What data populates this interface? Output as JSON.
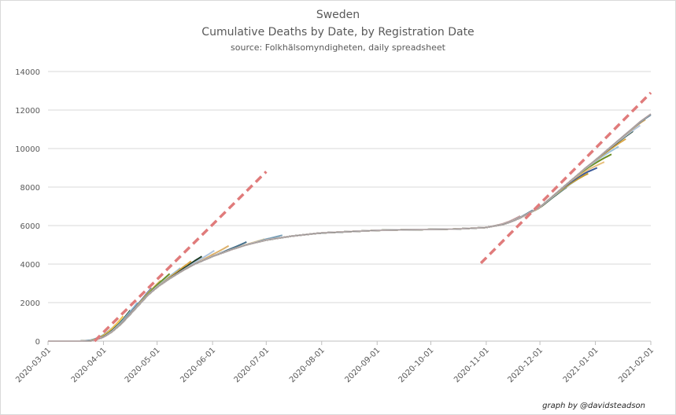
{
  "titles": {
    "country": "Sweden",
    "chart": "Cumulative Deaths by Date, by Registration Date",
    "source": "source: Folkhälsomyndigheten, daily spreadsheet"
  },
  "credit": "graph by @davidsteadson",
  "colors": {
    "gridline": "#d9d9d9",
    "trend": "#e07b7b",
    "series": [
      "#1f77b4",
      "#f2c14e",
      "#2f4f2f",
      "#8fbcd4",
      "#c49a2c",
      "#3b5998",
      "#e8c07d",
      "#6b8e23",
      "#9ec3d9",
      "#d9a441",
      "#1b3b24",
      "#b0c4de",
      "#ddb16b",
      "#456f8a",
      "#e6cfa1",
      "#7aa0b8",
      "#c9a3a3",
      "#5b7c99"
    ]
  },
  "chart_data": {
    "type": "line",
    "title": "Sweden",
    "subtitle": "Cumulative Deaths by Date, by Registration Date",
    "source": "source: Folkhälsomyndigheten, daily spreadsheet",
    "xlabel": "",
    "ylabel": "",
    "ylim": [
      0,
      14000
    ],
    "yticks": [
      0,
      2000,
      4000,
      6000,
      8000,
      10000,
      12000,
      14000
    ],
    "ytick_labels": [
      "0",
      "2000",
      "4000",
      "6000",
      "8000",
      "10000",
      "12000",
      "14000"
    ],
    "xlim": [
      "2020-03-01",
      "2021-02-01"
    ],
    "xticks": [
      "2020-03-01",
      "2020-04-01",
      "2020-05-01",
      "2020-06-01",
      "2020-07-01",
      "2020-08-01",
      "2020-09-01",
      "2020-10-01",
      "2020-11-01",
      "2020-12-01",
      "2021-01-01",
      "2021-02-01"
    ],
    "grid": true,
    "legend": "none",
    "base_curve": {
      "x": [
        "2020-03-01",
        "2020-03-20",
        "2020-03-26",
        "2020-04-01",
        "2020-04-06",
        "2020-04-11",
        "2020-04-16",
        "2020-04-21",
        "2020-04-26",
        "2020-05-01",
        "2020-05-08",
        "2020-05-15",
        "2020-05-22",
        "2020-06-01",
        "2020-06-10",
        "2020-06-20",
        "2020-07-01",
        "2020-07-15",
        "2020-08-01",
        "2020-08-15",
        "2020-09-01",
        "2020-09-15",
        "2020-10-01",
        "2020-10-15",
        "2020-11-01",
        "2020-11-10",
        "2020-11-15",
        "2020-11-20",
        "2020-11-25",
        "2020-12-01",
        "2020-12-06",
        "2020-12-11",
        "2020-12-16",
        "2020-12-21",
        "2020-12-26",
        "2021-01-01",
        "2021-01-06",
        "2021-01-11",
        "2021-01-16",
        "2021-01-21",
        "2021-01-26",
        "2021-02-01"
      ],
      "y": [
        0,
        0,
        20,
        200,
        500,
        900,
        1400,
        1900,
        2400,
        2800,
        3250,
        3650,
        4000,
        4400,
        4700,
        5000,
        5250,
        5450,
        5620,
        5680,
        5750,
        5780,
        5800,
        5820,
        5900,
        6050,
        6200,
        6400,
        6650,
        6950,
        7350,
        7750,
        8150,
        8550,
        8950,
        9400,
        9800,
        10200,
        10600,
        11000,
        11400,
        11800
      ]
    },
    "registration_series_end": {
      "x": [
        "2020-04-08",
        "2020-04-12",
        "2020-04-16",
        "2020-04-20",
        "2020-04-24",
        "2020-04-28",
        "2020-05-03",
        "2020-05-08",
        "2020-05-14",
        "2020-05-20",
        "2020-05-26",
        "2020-06-02",
        "2020-06-10",
        "2020-06-20",
        "2020-06-30",
        "2020-07-10",
        "2020-11-20",
        "2020-11-27",
        "2020-12-03",
        "2020-12-10",
        "2020-12-16",
        "2020-12-22",
        "2020-12-28",
        "2021-01-02",
        "2021-01-06",
        "2021-01-10",
        "2021-01-14",
        "2021-01-18",
        "2021-01-22",
        "2021-01-26",
        "2021-01-29",
        "2021-02-01"
      ],
      "y": [
        870,
        1300,
        1600,
        2000,
        2300,
        2750,
        3150,
        3500,
        3800,
        4150,
        4400,
        4700,
        4950,
        5150,
        5300,
        5500,
        6500,
        6800,
        7100,
        7600,
        8000,
        8400,
        8700,
        9000,
        9300,
        9700,
        10100,
        10500,
        10900,
        11200,
        11500,
        11750
      ]
    },
    "trend_lines": [
      {
        "x": [
          "2020-03-27",
          "2020-07-01"
        ],
        "y": [
          0,
          8800
        ]
      },
      {
        "x": [
          "2020-10-29",
          "2021-02-01"
        ],
        "y": [
          4050,
          12900
        ]
      }
    ]
  }
}
